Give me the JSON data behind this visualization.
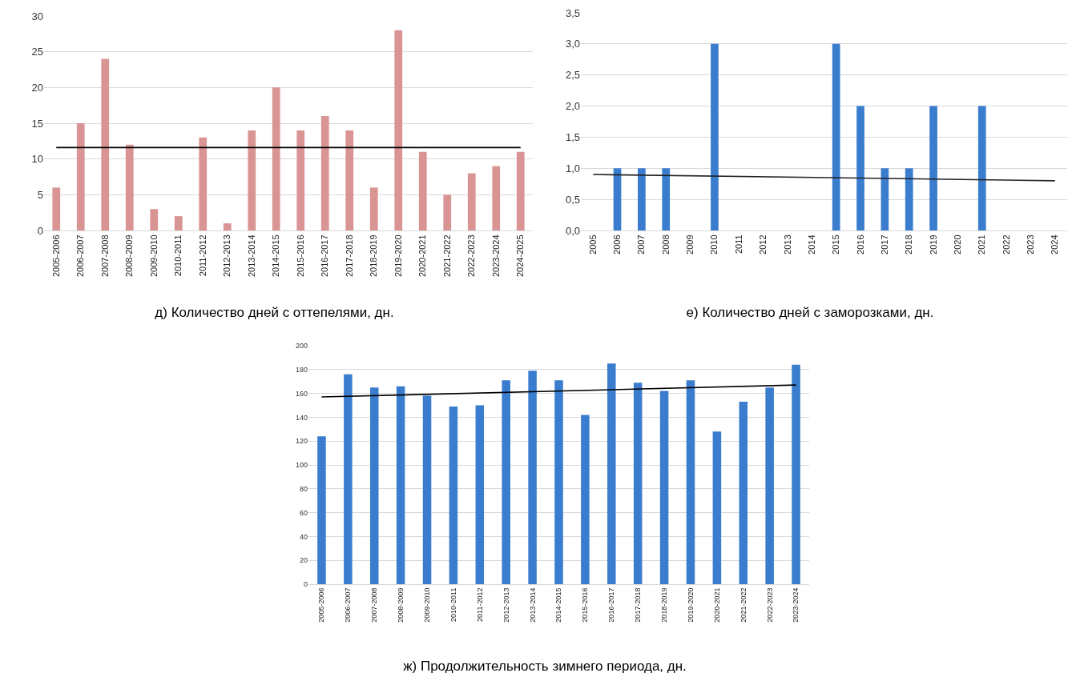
{
  "chart_data": [
    {
      "type": "bar",
      "title": "д) Количество дней с оттепелями, дн.",
      "categories": [
        "2005-2006",
        "2006-2007",
        "2007-2008",
        "2008-2009",
        "2009-2010",
        "2010-2011",
        "2011-2012",
        "2012-2013",
        "2013-2014",
        "2014-2015",
        "2015-2016",
        "2016-2017",
        "2017-2018",
        "2018-2019",
        "2019-2020",
        "2020-2021",
        "2021-2022",
        "2022-2023",
        "2023-2024",
        "2024-2025"
      ],
      "series": [
        {
          "color": "#d99594",
          "values": [
            6,
            15,
            24,
            12,
            3,
            2,
            13,
            1,
            14,
            20,
            14,
            16,
            14,
            6,
            28,
            11,
            5,
            8,
            9,
            11
          ]
        },
        {
          "type": "line",
          "color": "#000000",
          "x": [
            "2005-2006",
            "2024-2025"
          ],
          "values": [
            11.6,
            11.6
          ]
        }
      ],
      "ylim": [
        0,
        30
      ],
      "yticks": [
        0,
        5,
        10,
        15,
        20,
        25,
        30
      ],
      "grid": "y"
    },
    {
      "type": "bar",
      "title": "е) Количество дней с заморозками, дн.",
      "categories": [
        "2005",
        "2006",
        "2007",
        "2008",
        "2009",
        "2010",
        "2011",
        "2012",
        "2013",
        "2014",
        "2015",
        "2016",
        "2017",
        "2018",
        "2019",
        "2020",
        "2021",
        "2022",
        "2023",
        "2024"
      ],
      "series": [
        {
          "color": "#3a7dce",
          "values": [
            0,
            1,
            1,
            1,
            0,
            3,
            0,
            0,
            0,
            0,
            3,
            2,
            1,
            1,
            2,
            0,
            2,
            0,
            0,
            0
          ]
        },
        {
          "type": "line",
          "color": "#222222",
          "values": [
            0.9,
            null,
            null,
            null,
            null,
            null,
            null,
            null,
            null,
            null,
            null,
            null,
            null,
            null,
            null,
            null,
            null,
            null,
            null,
            0.8
          ]
        }
      ],
      "ylim": [
        0,
        3.5
      ],
      "yticks": [
        {
          "value": 0,
          "label": "0,0"
        },
        {
          "value": 0.5,
          "label": "0,5"
        },
        {
          "value": 1,
          "label": "1,0"
        },
        {
          "value": 1.5,
          "label": "1,5"
        },
        {
          "value": 2,
          "label": "2,0"
        },
        {
          "value": 2.5,
          "label": "2,5"
        },
        {
          "value": 3,
          "label": "3,0"
        },
        {
          "value": 3.5,
          "label": "3,5"
        }
      ],
      "grid": "y"
    },
    {
      "type": "bar",
      "title": "ж) Продолжительность зимнего периода, дн.",
      "categories": [
        "2005-2006",
        "2006-2007",
        "2007-2008",
        "2008-2009",
        "2009-2010",
        "2010-2011",
        "2011-2012",
        "2012-2013",
        "2013-2014",
        "2014-2015",
        "2015-2016",
        "2016-2017",
        "2017-2018",
        "2018-2019",
        "2019-2020",
        "2020-2021",
        "2021-2022",
        "2022-2023",
        "2023-2024"
      ],
      "series": [
        {
          "color": "#3a7dce",
          "values": [
            124,
            176,
            165,
            166,
            158,
            149,
            150,
            171,
            179,
            171,
            142,
            185,
            169,
            162,
            171,
            128,
            153,
            165,
            184
          ]
        },
        {
          "type": "line",
          "color": "#000000",
          "x": [
            "2005-2006",
            "2023-2024"
          ],
          "values": [
            157,
            167
          ]
        }
      ],
      "ylim": [
        0,
        200
      ],
      "yticks": [
        0,
        20,
        40,
        60,
        80,
        100,
        120,
        140,
        160,
        180,
        200
      ],
      "grid": "y"
    }
  ]
}
